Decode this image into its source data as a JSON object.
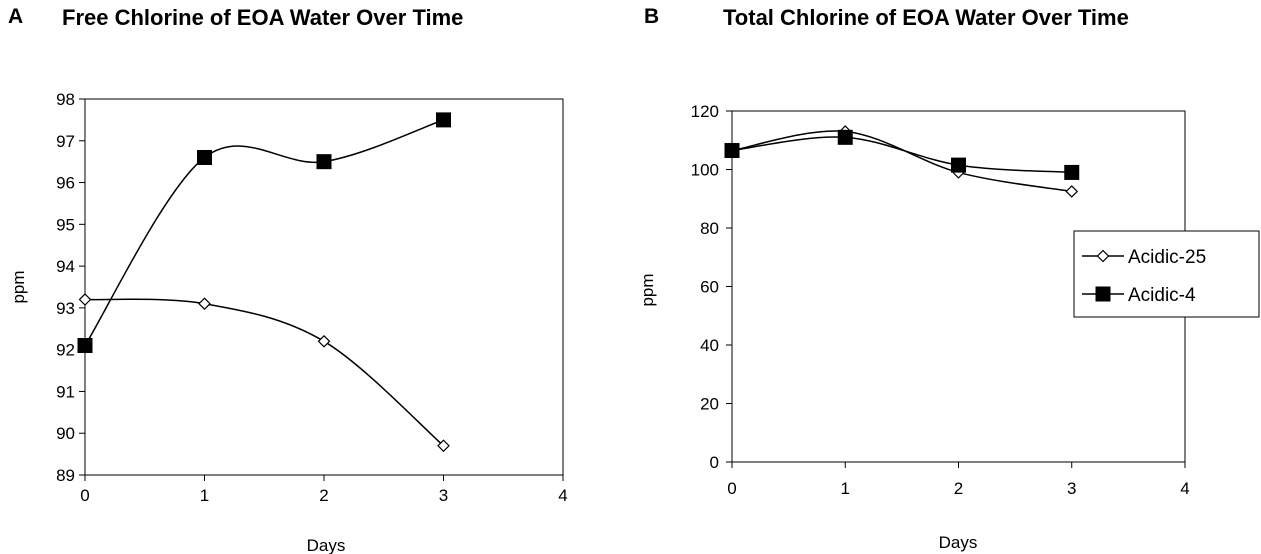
{
  "chart_data": [
    {
      "panel": "A",
      "type": "line",
      "title": "Free Chlorine of EOA Water Over Time",
      "xlabel": "Days",
      "ylabel": "ppm",
      "xlim": [
        0,
        4
      ],
      "ylim": [
        89,
        98
      ],
      "xticks": [
        "0",
        "1",
        "2",
        "3",
        "4"
      ],
      "yticks": [
        "89",
        "90",
        "91",
        "92",
        "93",
        "94",
        "95",
        "96",
        "97",
        "98"
      ],
      "grid": false,
      "legend": "none",
      "series": [
        {
          "marker": "open-diamond",
          "x": [
            0,
            1,
            2,
            3
          ],
          "values": [
            93.2,
            93.1,
            92.2,
            89.7
          ]
        },
        {
          "marker": "filled-square",
          "x": [
            0,
            1,
            2,
            3
          ],
          "values": [
            92.1,
            96.6,
            96.5,
            97.5
          ]
        }
      ]
    },
    {
      "panel": "B",
      "type": "line",
      "title": "Total Chlorine of EOA Water Over Time",
      "xlabel": "Days",
      "ylabel": "ppm",
      "xlim": [
        0,
        4
      ],
      "ylim": [
        0,
        120
      ],
      "xticks": [
        "0",
        "1",
        "2",
        "3",
        "4"
      ],
      "yticks": [
        "0",
        "20",
        "40",
        "60",
        "80",
        "100",
        "120"
      ],
      "grid": false,
      "legend": "right",
      "series": [
        {
          "name": "Acidic-25",
          "marker": "open-diamond",
          "x": [
            0,
            1,
            2,
            3
          ],
          "values": [
            106.5,
            113,
            99,
            92.5
          ]
        },
        {
          "name": "Acidic-4",
          "marker": "filled-square",
          "x": [
            0,
            1,
            2,
            3
          ],
          "values": [
            106.5,
            111,
            101.5,
            99
          ]
        }
      ]
    }
  ]
}
